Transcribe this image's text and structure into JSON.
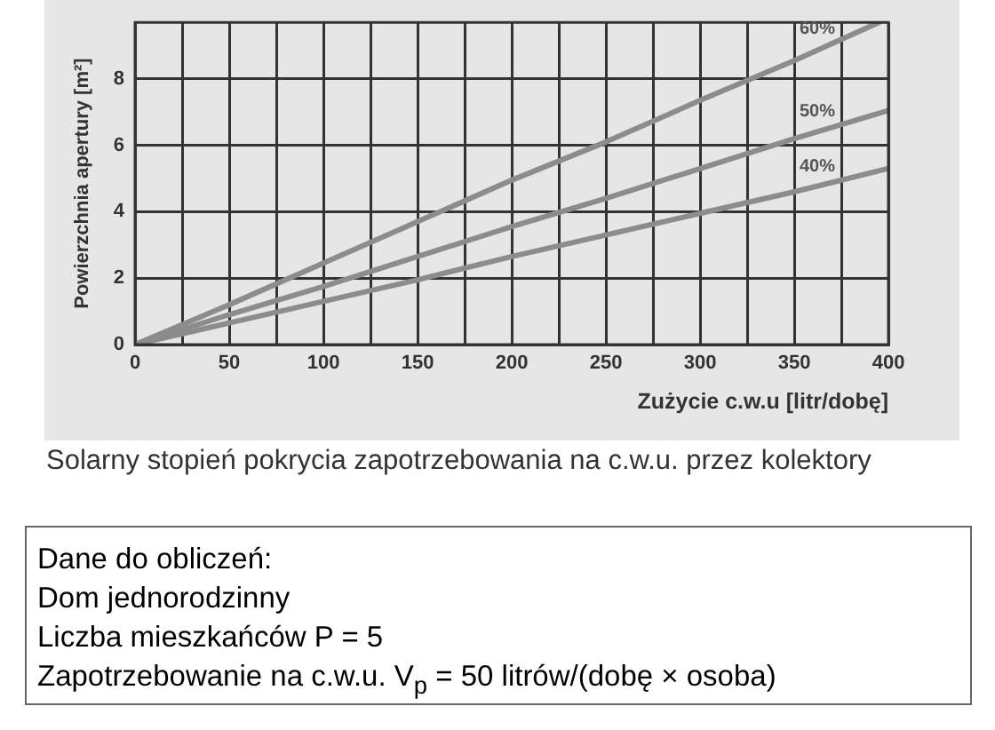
{
  "chart_data": {
    "type": "line",
    "xlabel": "Zużycie c.w.u [litr/dobę]",
    "ylabel": "Powierzchnia apertury [m²]",
    "xlim": [
      0,
      400
    ],
    "xticks": [
      0,
      {
        "value": 25,
        "label": null
      },
      50,
      {
        "value": 75,
        "label": null
      },
      100,
      {
        "value": 125,
        "label": null
      },
      150,
      {
        "value": 175,
        "label": null
      },
      200,
      {
        "value": 225,
        "label": null
      },
      250,
      {
        "value": 275,
        "label": null
      },
      300,
      {
        "value": 325,
        "label": null
      },
      350,
      {
        "value": 375,
        "label": null
      },
      400
    ],
    "ylim": [
      0,
      9.7
    ],
    "yticks": [
      0,
      2,
      4,
      6,
      8
    ],
    "grid": true,
    "marker": "none",
    "line_style": "solid",
    "series": [
      {
        "name": "60%",
        "color": "#8c8c8c",
        "x": [
          0,
          50,
          100,
          150,
          200,
          250,
          300,
          350,
          395
        ],
        "values": [
          0,
          1.2,
          2.45,
          3.7,
          4.95,
          6.1,
          7.35,
          8.55,
          9.7
        ]
      },
      {
        "name": "50%",
        "color": "#8c8c8c",
        "x": [
          0,
          50,
          100,
          150,
          200,
          250,
          300,
          350,
          400
        ],
        "values": [
          0,
          0.9,
          1.75,
          2.65,
          3.55,
          4.4,
          5.3,
          6.2,
          7.05
        ]
      },
      {
        "name": "40%",
        "color": "#8c8c8c",
        "x": [
          0,
          50,
          100,
          150,
          200,
          250,
          300,
          350,
          400
        ],
        "values": [
          0,
          0.65,
          1.3,
          1.95,
          2.65,
          3.3,
          3.95,
          4.6,
          5.3
        ]
      }
    ],
    "annotations": [
      "Solarny stopień pokrycia zapotrzebowania na c.w.u. przez kolektory",
      "Dane do obliczeń:",
      "Dom jednorodzinny",
      "Liczba mieszkańców P = 5",
      "Zapotrzebowanie na c.w.u. V$_{p}$ = 50 litrów/(dobę × osoba)"
    ]
  }
}
